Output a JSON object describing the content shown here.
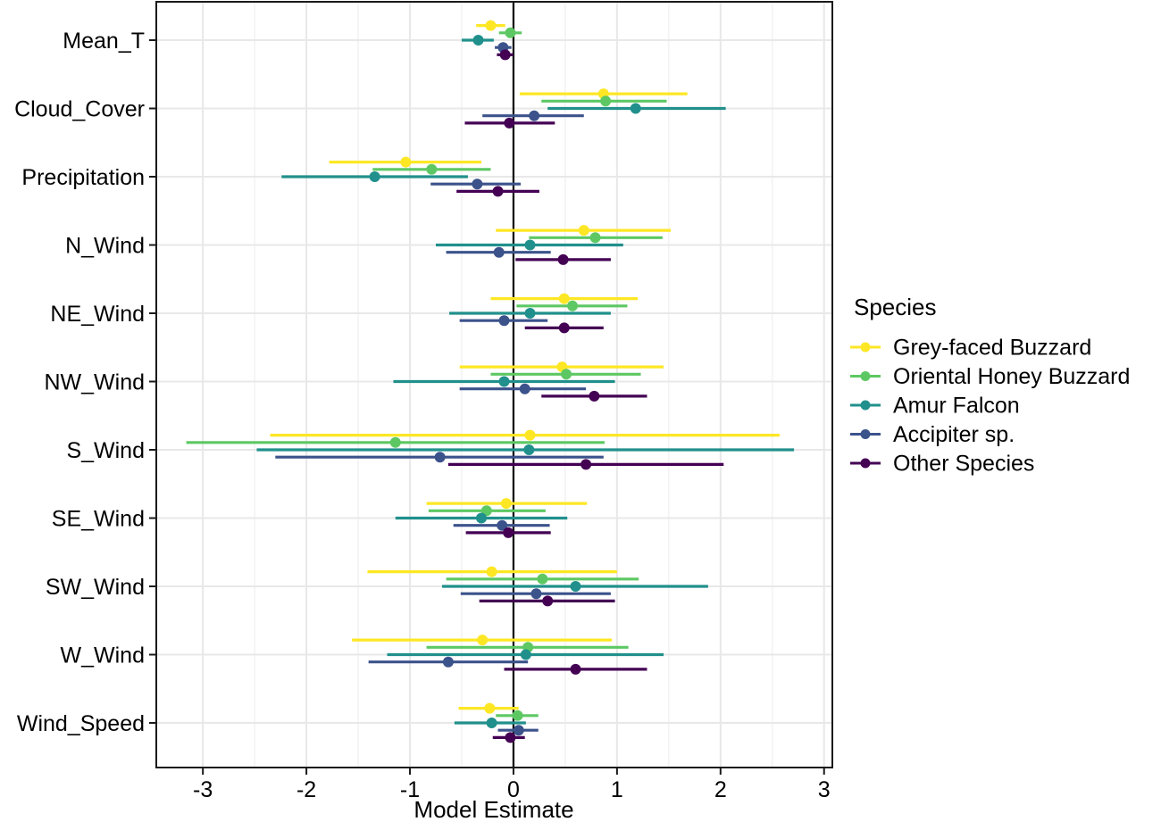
{
  "chart_data": {
    "type": "scatter",
    "subtype": "forest-pointrange",
    "title": "",
    "xlabel": "Model Estimate",
    "ylabel": "",
    "xlim": [
      -3.45,
      3.08
    ],
    "xticks": [
      -3,
      -2,
      -1,
      0,
      1,
      2,
      3
    ],
    "xtick_labels": [
      "-3",
      "-2",
      "-1",
      "0",
      "1",
      "2",
      "3"
    ],
    "minor_ticks": [
      -2.5,
      -1.5,
      -0.5,
      0.5,
      1.5,
      2.5
    ],
    "zero_line": true,
    "grid": "major-and-minor",
    "categories": [
      "Mean_T",
      "Cloud_Cover",
      "Precipitation",
      "N_Wind",
      "NE_Wind",
      "NW_Wind",
      "S_Wind",
      "SE_Wind",
      "SW_Wind",
      "W_Wind",
      "Wind_Speed"
    ],
    "legend": {
      "title": "Species",
      "position": "right"
    },
    "value_format": "[estimate, ci_low, ci_high]",
    "series": [
      {
        "name": "Grey-faced Buzzard",
        "color": "#FDE725",
        "values": [
          [
            -0.22,
            -0.36,
            -0.08
          ],
          [
            0.87,
            0.06,
            1.68
          ],
          [
            -1.04,
            -1.78,
            -0.31
          ],
          [
            0.68,
            -0.17,
            1.52
          ],
          [
            0.49,
            -0.22,
            1.2
          ],
          [
            0.47,
            -0.52,
            1.45
          ],
          [
            0.16,
            -2.35,
            2.57
          ],
          [
            -0.07,
            -0.84,
            0.71
          ],
          [
            -0.21,
            -1.41,
            1.0
          ],
          [
            -0.3,
            -1.56,
            0.95
          ],
          [
            -0.23,
            -0.53,
            0.05
          ]
        ]
      },
      {
        "name": "Oriental Honey Buzzard",
        "color": "#5DC863",
        "values": [
          [
            -0.03,
            -0.14,
            0.08
          ],
          [
            0.89,
            0.27,
            1.48
          ],
          [
            -0.79,
            -1.36,
            -0.22
          ],
          [
            0.79,
            0.15,
            1.44
          ],
          [
            0.57,
            0.03,
            1.1
          ],
          [
            0.51,
            -0.22,
            1.23
          ],
          [
            -1.14,
            -3.16,
            0.88
          ],
          [
            -0.26,
            -0.82,
            0.31
          ],
          [
            0.28,
            -0.65,
            1.21
          ],
          [
            0.14,
            -0.84,
            1.11
          ],
          [
            0.04,
            -0.17,
            0.24
          ]
        ]
      },
      {
        "name": "Amur Falcon",
        "color": "#21908C",
        "values": [
          [
            -0.34,
            -0.5,
            -0.19
          ],
          [
            1.18,
            0.33,
            2.05
          ],
          [
            -1.34,
            -2.24,
            -0.44
          ],
          [
            0.16,
            -0.75,
            1.06
          ],
          [
            0.16,
            -0.62,
            0.94
          ],
          [
            -0.09,
            -1.16,
            0.98
          ],
          [
            0.15,
            -2.48,
            2.71
          ],
          [
            -0.31,
            -1.14,
            0.52
          ],
          [
            0.6,
            -0.69,
            1.88
          ],
          [
            0.12,
            -1.22,
            1.45
          ],
          [
            -0.21,
            -0.57,
            0.12
          ]
        ]
      },
      {
        "name": "Accipiter sp.",
        "color": "#3B528B",
        "values": [
          [
            -0.1,
            -0.18,
            -0.02
          ],
          [
            0.2,
            -0.3,
            0.68
          ],
          [
            -0.35,
            -0.8,
            0.07
          ],
          [
            -0.14,
            -0.65,
            0.36
          ],
          [
            -0.09,
            -0.52,
            0.33
          ],
          [
            0.11,
            -0.52,
            0.7
          ],
          [
            -0.71,
            -2.3,
            0.87
          ],
          [
            -0.11,
            -0.58,
            0.35
          ],
          [
            0.22,
            -0.51,
            0.94
          ],
          [
            -0.63,
            -1.4,
            0.14
          ],
          [
            0.05,
            -0.15,
            0.24
          ]
        ]
      },
      {
        "name": "Other Species",
        "color": "#440154",
        "values": [
          [
            -0.08,
            -0.16,
            0.0
          ],
          [
            -0.04,
            -0.47,
            0.4
          ],
          [
            -0.15,
            -0.55,
            0.25
          ],
          [
            0.48,
            0.02,
            0.94
          ],
          [
            0.49,
            0.11,
            0.87
          ],
          [
            0.78,
            0.27,
            1.29
          ],
          [
            0.7,
            -0.63,
            2.03
          ],
          [
            -0.05,
            -0.46,
            0.36
          ],
          [
            0.33,
            -0.33,
            0.98
          ],
          [
            0.6,
            -0.09,
            1.29
          ],
          [
            -0.03,
            -0.2,
            0.11
          ]
        ]
      }
    ],
    "style_colors": {
      "panel_border": "#1a1a1a",
      "zero_line": "#000000",
      "grid_major": "#e8e8e8",
      "grid_minor": "#f3f3f3",
      "background": "#ffffff",
      "text": "#000000"
    }
  }
}
